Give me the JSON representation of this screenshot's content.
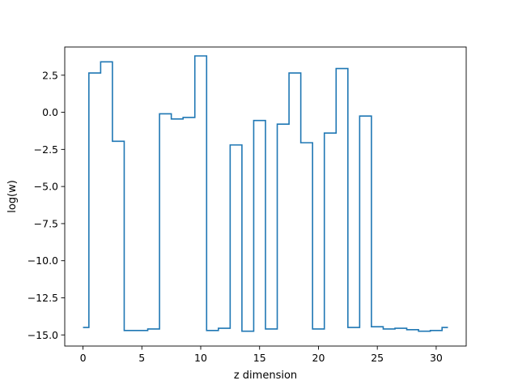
{
  "chart_data": {
    "type": "line",
    "drawstyle": "steps-mid",
    "title": "",
    "xlabel": "z dimension",
    "ylabel": "log(w)",
    "xlim": [
      -1.55,
      32.55
    ],
    "ylim": [
      -15.75,
      4.4
    ],
    "xticks": [
      0,
      5,
      10,
      15,
      20,
      25,
      30
    ],
    "xtick_labels": [
      "0",
      "5",
      "10",
      "15",
      "20",
      "25",
      "30"
    ],
    "yticks": [
      2.5,
      0.0,
      -2.5,
      -5.0,
      -7.5,
      -10.0,
      -12.5,
      -15.0
    ],
    "ytick_labels": [
      "2.5",
      "0.0",
      "−2.5",
      "−5.0",
      "−7.5",
      "−10.0",
      "−12.5",
      "−15.0"
    ],
    "grid": false,
    "line_color": "#1f77b4",
    "series": [
      {
        "x": [
          0,
          1,
          2,
          3,
          4,
          5,
          6,
          7,
          8,
          9,
          10,
          11,
          12,
          13,
          14,
          15,
          16,
          17,
          18,
          19,
          20,
          21,
          22,
          23,
          24,
          25,
          26,
          27,
          28,
          29,
          30,
          31
        ],
        "values": [
          -14.5,
          2.65,
          3.4,
          -1.95,
          -14.7,
          -14.7,
          -14.6,
          -0.1,
          -0.45,
          -0.35,
          3.8,
          -14.7,
          -14.55,
          -2.2,
          -14.75,
          -0.55,
          -14.6,
          -0.8,
          2.65,
          -2.05,
          -14.6,
          -1.4,
          2.95,
          -14.5,
          -0.25,
          -14.45,
          -14.6,
          -14.55,
          -14.65,
          -14.75,
          -14.7,
          -14.5
        ]
      }
    ]
  }
}
